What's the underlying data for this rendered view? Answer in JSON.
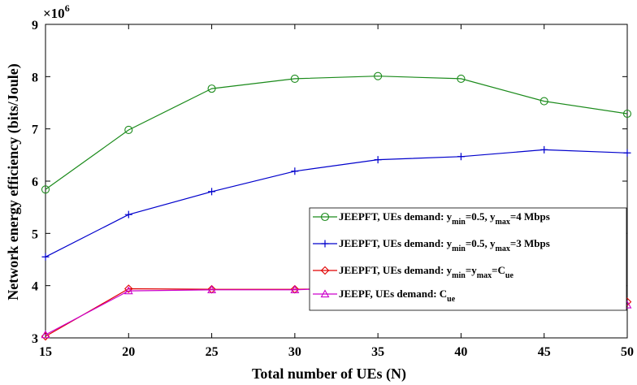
{
  "chart_data": {
    "type": "line",
    "xlabel": "Total number of UEs (N)",
    "ylabel": "Network energy efficiency (bits/Joule)",
    "y_multiplier_base": "×10",
    "y_multiplier_exp": "6",
    "xlim": [
      15,
      50
    ],
    "ylim": [
      3,
      9
    ],
    "x_ticks": [
      "15",
      "20",
      "25",
      "30",
      "35",
      "40",
      "45",
      "50"
    ],
    "y_ticks": [
      "3",
      "4",
      "5",
      "6",
      "7",
      "8",
      "9"
    ],
    "grid": false,
    "legend_position": "center-right",
    "x": [
      15,
      20,
      25,
      30,
      35,
      40,
      45,
      50
    ],
    "series": [
      {
        "legend_parts": [
          {
            "t": "JEEPFT, UEs demand: y"
          },
          {
            "t": "min",
            "sub": true
          },
          {
            "t": "=0.5, y"
          },
          {
            "t": "max",
            "sub": true
          },
          {
            "t": "=4 Mbps"
          }
        ],
        "color": "#1a8a1a",
        "marker": "circle",
        "values": [
          5.84,
          6.98,
          7.77,
          7.96,
          8.01,
          7.96,
          7.53,
          7.29
        ]
      },
      {
        "legend_parts": [
          {
            "t": "JEEPFT, UEs demand: y"
          },
          {
            "t": "min",
            "sub": true
          },
          {
            "t": "=0.5, y"
          },
          {
            "t": "max",
            "sub": true
          },
          {
            "t": "=3 Mbps"
          }
        ],
        "color": "#0000cc",
        "marker": "plus",
        "values": [
          4.55,
          5.36,
          5.8,
          6.19,
          6.41,
          6.47,
          6.6,
          6.54
        ]
      },
      {
        "legend_parts": [
          {
            "t": "JEEPFT, UEs demand: y"
          },
          {
            "t": "min",
            "sub": true
          },
          {
            "t": "=y"
          },
          {
            "t": "max",
            "sub": true
          },
          {
            "t": "=C"
          },
          {
            "t": "ue",
            "sub": true
          }
        ],
        "color": "#e00000",
        "marker": "diamond",
        "values": [
          3.03,
          3.94,
          3.93,
          3.93,
          3.96,
          3.72,
          3.78,
          3.69
        ]
      },
      {
        "legend_parts": [
          {
            "t": "JEEPF, UEs demand: C"
          },
          {
            "t": "ue",
            "sub": true
          }
        ],
        "color": "#cc00cc",
        "marker": "triangle",
        "values": [
          3.06,
          3.9,
          3.92,
          3.92,
          3.98,
          3.75,
          3.79,
          3.63
        ]
      }
    ]
  }
}
